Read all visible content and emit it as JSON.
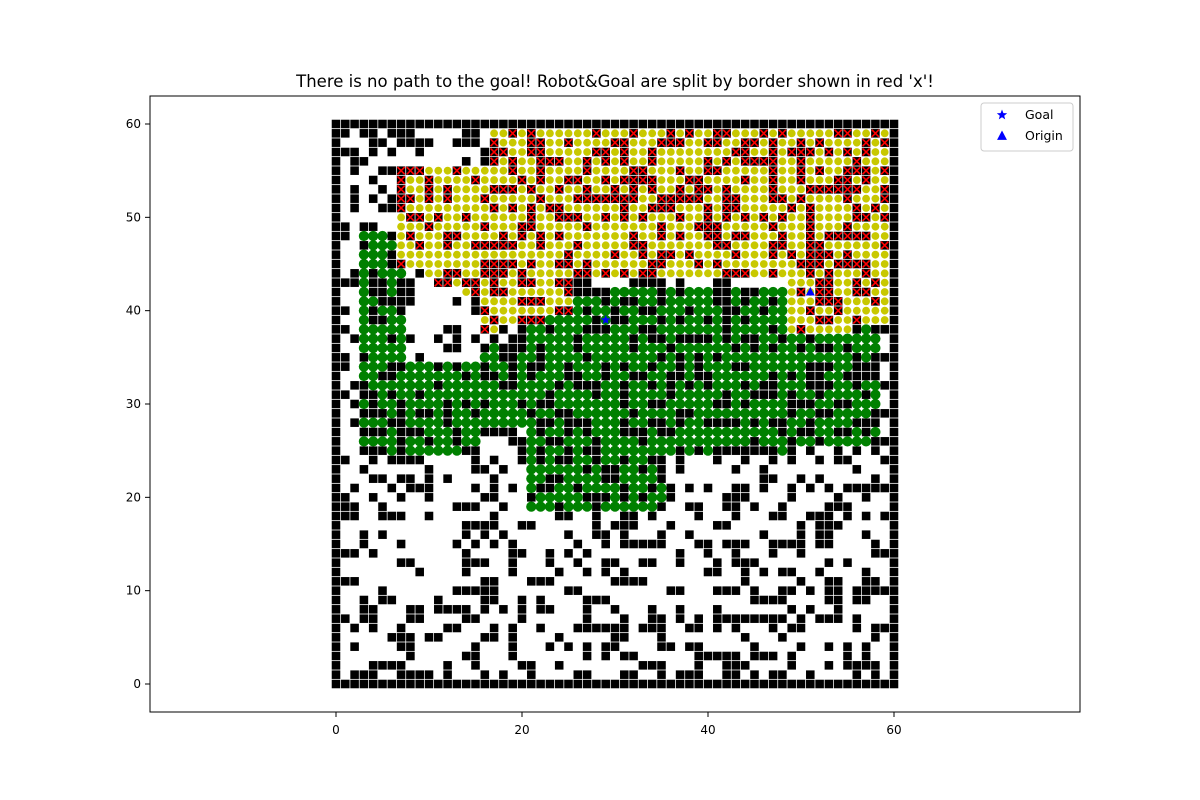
{
  "chart_data": {
    "type": "scatter",
    "title": "There is no path to  the goal! Robot&Goal are split by border shown in red 'x'!",
    "xlabel": "",
    "ylabel": "",
    "xlim": [
      -20,
      80
    ],
    "ylim": [
      -3,
      63
    ],
    "xticks": [
      0,
      20,
      40,
      60
    ],
    "yticks": [
      0,
      10,
      20,
      30,
      40,
      50,
      60
    ],
    "grid": false,
    "legend_position": "top-right",
    "grid_extent": [
      0,
      60
    ],
    "series": [
      {
        "name": "Goal",
        "marker": "star",
        "color": "#0000ff",
        "points": [
          [
            29,
            39
          ]
        ]
      },
      {
        "name": "Origin",
        "marker": "triangle",
        "color": "#0000ff",
        "points": [
          [
            51,
            42
          ]
        ]
      }
    ],
    "unlabeled_layers": {
      "obstacles": {
        "marker": "square",
        "color": "#000000",
        "description_key": "black"
      },
      "explored_goal_side": {
        "marker": "circle",
        "color": "#008000",
        "x_range": [
          3,
          58
        ],
        "y_range": [
          19,
          48
        ]
      },
      "explored_robot_side": {
        "marker": "circle",
        "color": "#c8c800",
        "x_range": [
          7,
          59
        ],
        "y_range": [
          38,
          59
        ]
      },
      "border": {
        "marker": "x",
        "color": "#ff0000",
        "fill": "#000000"
      }
    }
  }
}
